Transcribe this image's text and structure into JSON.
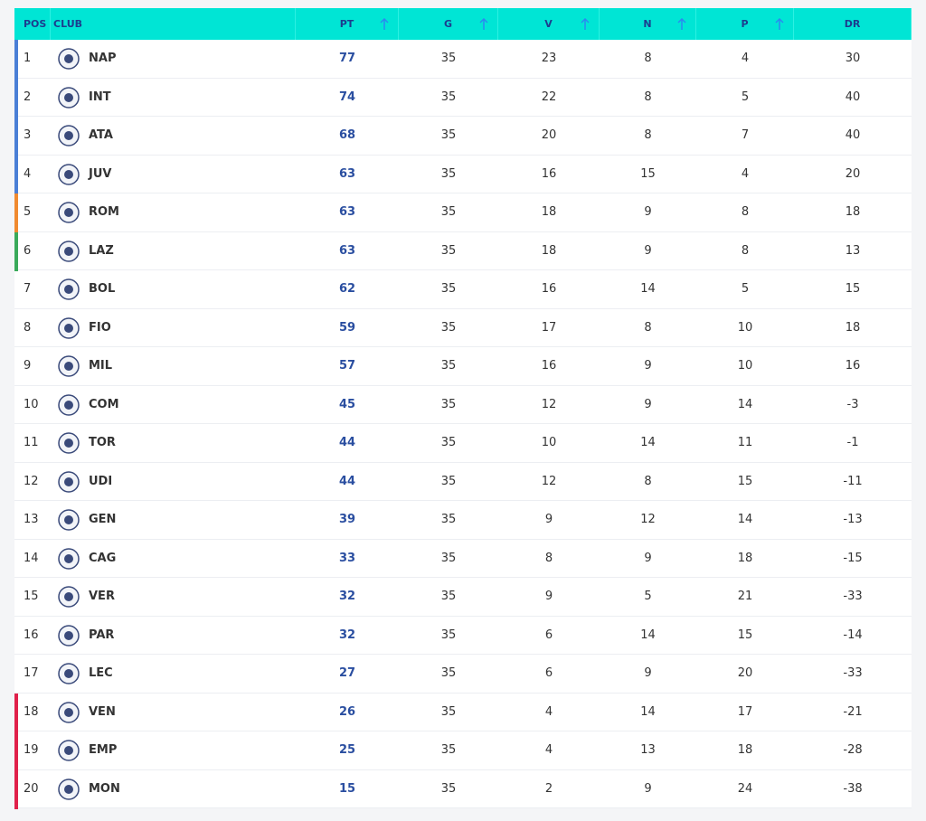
{
  "table": {
    "headers": [
      "POS",
      "CLUB",
      "PT",
      "G",
      "V",
      "N",
      "P",
      "DR"
    ],
    "rows": [
      [
        1,
        "NAP",
        77,
        35,
        23,
        8,
        4,
        30
      ],
      [
        2,
        "INT",
        74,
        35,
        22,
        8,
        5,
        40
      ],
      [
        3,
        "ATA",
        68,
        35,
        20,
        8,
        7,
        40
      ],
      [
        4,
        "JUV",
        63,
        35,
        16,
        15,
        4,
        20
      ],
      [
        5,
        "ROM",
        63,
        35,
        18,
        9,
        8,
        18
      ],
      [
        6,
        "LAZ",
        63,
        35,
        18,
        9,
        8,
        13
      ],
      [
        7,
        "BOL",
        62,
        35,
        16,
        14,
        5,
        15
      ],
      [
        8,
        "FIO",
        59,
        35,
        17,
        8,
        10,
        18
      ],
      [
        9,
        "MIL",
        57,
        35,
        16,
        9,
        10,
        16
      ],
      [
        10,
        "COM",
        45,
        35,
        12,
        9,
        14,
        -3
      ],
      [
        11,
        "TOR",
        44,
        35,
        10,
        14,
        11,
        -1
      ],
      [
        12,
        "UDI",
        44,
        35,
        12,
        8,
        15,
        -11
      ],
      [
        13,
        "GEN",
        39,
        35,
        9,
        12,
        14,
        -13
      ],
      [
        14,
        "CAG",
        33,
        35,
        8,
        9,
        18,
        -15
      ],
      [
        15,
        "VER",
        32,
        35,
        9,
        5,
        21,
        -33
      ],
      [
        16,
        "PAR",
        32,
        35,
        6,
        14,
        15,
        -14
      ],
      [
        17,
        "LEC",
        27,
        35,
        6,
        9,
        20,
        -33
      ],
      [
        18,
        "VEN",
        26,
        35,
        4,
        14,
        17,
        -21
      ],
      [
        19,
        "EMP",
        25,
        35,
        4,
        13,
        18,
        -28
      ],
      [
        20,
        "MON",
        15,
        35,
        2,
        9,
        24,
        -38
      ]
    ],
    "row_colors": [
      "#4a7fd6",
      "#4a7fd6",
      "#4a7fd6",
      "#4a7fd6",
      "#f08a30",
      "#3aaa5a",
      null,
      null,
      null,
      null,
      null,
      null,
      null,
      null,
      null,
      null,
      null,
      "#e0204a",
      "#e0204a",
      "#e0204a"
    ]
  }
}
